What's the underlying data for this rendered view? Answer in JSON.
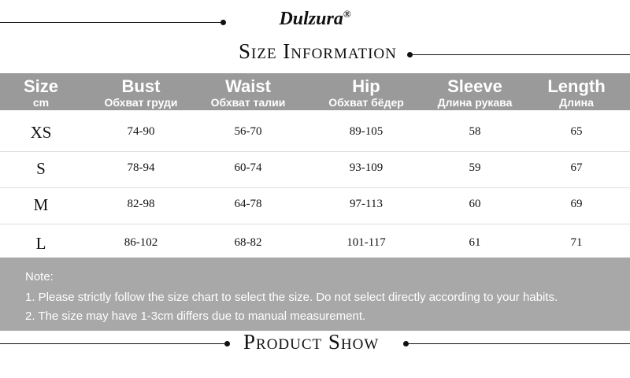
{
  "brand": "Dulzura",
  "brand_mark": "®",
  "title": "Size Information",
  "table": {
    "columns": [
      {
        "name": "Size",
        "sub": "cm"
      },
      {
        "name": "Bust",
        "sub": "Обхват груди"
      },
      {
        "name": "Waist",
        "sub": "Обхват талии"
      },
      {
        "name": "Hip",
        "sub": "Обхват бёдер"
      },
      {
        "name": "Sleeve",
        "sub": "Длина рукава"
      },
      {
        "name": "Length",
        "sub": "Длина"
      }
    ],
    "rows": [
      [
        "XS",
        "74-90",
        "56-70",
        "89-105",
        "58",
        "65"
      ],
      [
        "S",
        "78-94",
        "60-74",
        "93-109",
        "59",
        "67"
      ],
      [
        "M",
        "82-98",
        "64-78",
        "97-113",
        "60",
        "69"
      ],
      [
        "L",
        "86-102",
        "68-82",
        "101-117",
        "61",
        "71"
      ]
    ]
  },
  "note": {
    "heading": "Note:",
    "lines": [
      "1. Please strictly follow the size chart to select the size. Do not select directly according to your habits.",
      "2. The size may have 1-3cm differs due to manual measurement."
    ]
  },
  "section_title": "Product Show"
}
